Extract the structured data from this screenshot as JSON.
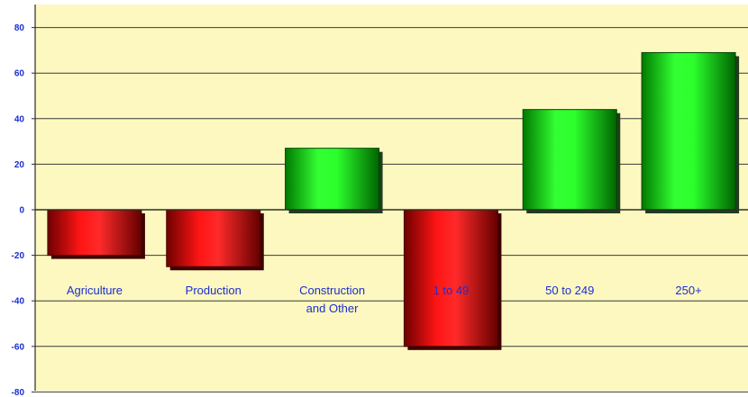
{
  "chart_data": {
    "type": "bar",
    "title": "",
    "xlabel": "",
    "ylabel": "",
    "categories": [
      "Agriculture",
      "Production",
      "Construction\nand Other",
      "1 to 49",
      "50 to 249",
      "250+"
    ],
    "values": [
      -20,
      -25,
      27,
      -60,
      44,
      69
    ],
    "ylim": [
      -80,
      80
    ],
    "y_ticks": [
      "80",
      "60",
      "40",
      "20",
      "0",
      "-20",
      "-40",
      "-60",
      "-80"
    ],
    "grid": true,
    "legend": "none",
    "colors": {
      "positive": "#00d000",
      "negative": "#e00000",
      "plot_background": "#fdf8bf",
      "label_text": "#1b2fd0"
    }
  }
}
